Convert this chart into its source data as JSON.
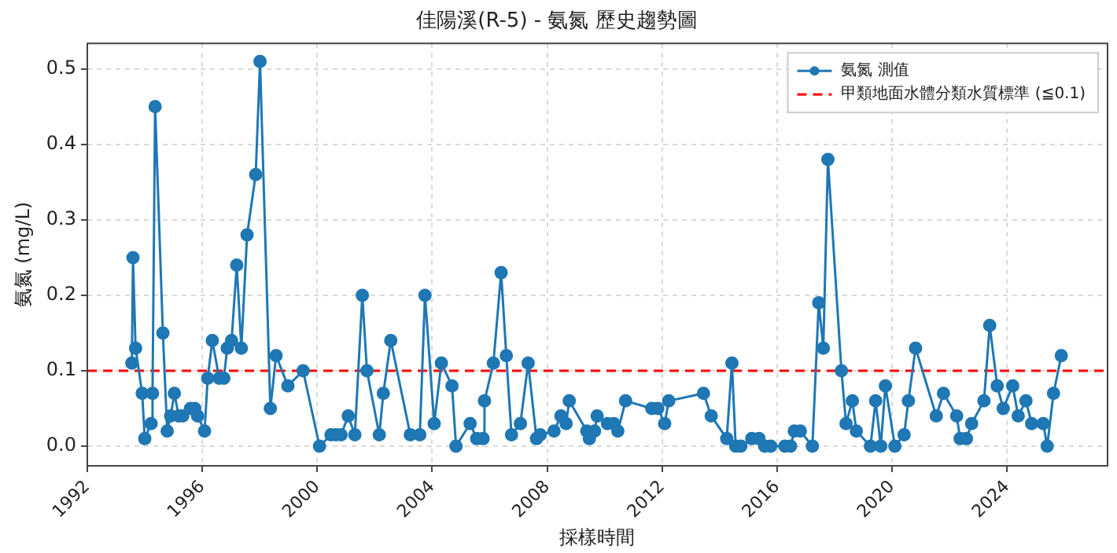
{
  "chart_data": {
    "type": "line",
    "title": "佳陽溪(R-5) - 氨氮 歷史趨勢圖",
    "xlabel": "採樣時間",
    "ylabel": "氨氮 (mg/L)",
    "x": [
      1993.55,
      1993.59,
      1993.68,
      1993.91,
      1994.0,
      1994.22,
      1994.27,
      1994.36,
      1994.63,
      1994.78,
      1994.9,
      1995.03,
      1995.18,
      1995.32,
      1995.59,
      1995.74,
      1995.84,
      1996.08,
      1996.19,
      1996.35,
      1996.59,
      1996.75,
      1996.87,
      1997.02,
      1997.2,
      1997.36,
      1997.56,
      1997.86,
      1998.01,
      1998.37,
      1998.57,
      1998.98,
      1999.51,
      2000.08,
      2000.48,
      2000.65,
      2000.83,
      2001.08,
      2001.31,
      2001.57,
      2001.73,
      2002.16,
      2002.3,
      2002.56,
      2003.24,
      2003.57,
      2003.75,
      2004.07,
      2004.32,
      2004.69,
      2004.83,
      2005.32,
      2005.55,
      2005.77,
      2005.82,
      2006.13,
      2006.4,
      2006.58,
      2006.76,
      2007.07,
      2007.34,
      2007.63,
      2007.76,
      2008.24,
      2008.48,
      2008.66,
      2008.77,
      2009.38,
      2009.47,
      2009.65,
      2009.74,
      2010.1,
      2010.32,
      2010.46,
      2010.73,
      2011.64,
      2011.85,
      2012.09,
      2012.23,
      2013.44,
      2013.71,
      2014.25,
      2014.43,
      2014.56,
      2014.74,
      2015.12,
      2015.37,
      2015.57,
      2015.78,
      2016.27,
      2016.47,
      2016.6,
      2016.81,
      2017.23,
      2017.45,
      2017.61,
      2017.77,
      2018.24,
      2018.4,
      2018.62,
      2018.76,
      2019.25,
      2019.43,
      2019.61,
      2019.77,
      2020.1,
      2020.42,
      2020.57,
      2020.82,
      2021.54,
      2021.79,
      2022.25,
      2022.37,
      2022.59,
      2022.77,
      2023.2,
      2023.4,
      2023.66,
      2023.87,
      2024.2,
      2024.39,
      2024.66,
      2024.86,
      2025.26,
      2025.4,
      2025.62,
      2025.89
    ],
    "series": [
      {
        "name": "氨氮 測值",
        "color": "#1f77b4",
        "values": [
          0.11,
          0.25,
          0.13,
          0.07,
          0.01,
          0.03,
          0.07,
          0.45,
          0.15,
          0.02,
          0.04,
          0.07,
          0.04,
          0.04,
          0.05,
          0.05,
          0.04,
          0.02,
          0.09,
          0.14,
          0.09,
          0.09,
          0.13,
          0.14,
          0.24,
          0.13,
          0.28,
          0.36,
          0.51,
          0.05,
          0.12,
          0.08,
          0.1,
          0.0,
          0.015,
          0.015,
          0.015,
          0.04,
          0.015,
          0.2,
          0.1,
          0.015,
          0.07,
          0.14,
          0.015,
          0.015,
          0.2,
          0.03,
          0.11,
          0.08,
          0.0,
          0.03,
          0.01,
          0.01,
          0.06,
          0.11,
          0.23,
          0.12,
          0.015,
          0.03,
          0.11,
          0.01,
          0.015,
          0.02,
          0.04,
          0.03,
          0.06,
          0.02,
          0.01,
          0.02,
          0.04,
          0.03,
          0.03,
          0.02,
          0.06,
          0.05,
          0.05,
          0.03,
          0.06,
          0.07,
          0.04,
          0.01,
          0.11,
          0.0,
          0.0,
          0.01,
          0.01,
          0.0,
          0.0,
          0.0,
          0.0,
          0.02,
          0.02,
          0.0,
          0.19,
          0.13,
          0.38,
          0.1,
          0.03,
          0.06,
          0.02,
          0.0,
          0.06,
          0.0,
          0.08,
          0.0,
          0.015,
          0.06,
          0.13,
          0.04,
          0.07,
          0.04,
          0.01,
          0.01,
          0.03,
          0.06,
          0.16,
          0.08,
          0.05,
          0.08,
          0.04,
          0.06,
          0.03,
          0.03,
          0.0,
          0.07,
          0.12
        ]
      }
    ],
    "ref_lines": [
      {
        "axis": "y",
        "value": 0.1,
        "label": "甲類地面水體分類水質標準 (≦0.1)",
        "color": "#ff0000",
        "line_style": "dashed"
      }
    ],
    "xlim": [
      1992,
      2027.5
    ],
    "xticks": [
      1992,
      1996,
      2000,
      2004,
      2008,
      2012,
      2016,
      2020,
      2024
    ],
    "ylim": [
      -0.026,
      0.534
    ],
    "yticks": [
      {
        "value": 0,
        "label": "0.0"
      },
      {
        "value": 0.1,
        "label": "0.1"
      },
      {
        "value": 0.2,
        "label": "0.2"
      },
      {
        "value": 0.3,
        "label": "0.3"
      },
      {
        "value": 0.4,
        "label": "0.4"
      },
      {
        "value": 0.5,
        "label": "0.5"
      }
    ],
    "grid": true,
    "legend": "top right",
    "marker": "circle",
    "line_style": "solid"
  }
}
